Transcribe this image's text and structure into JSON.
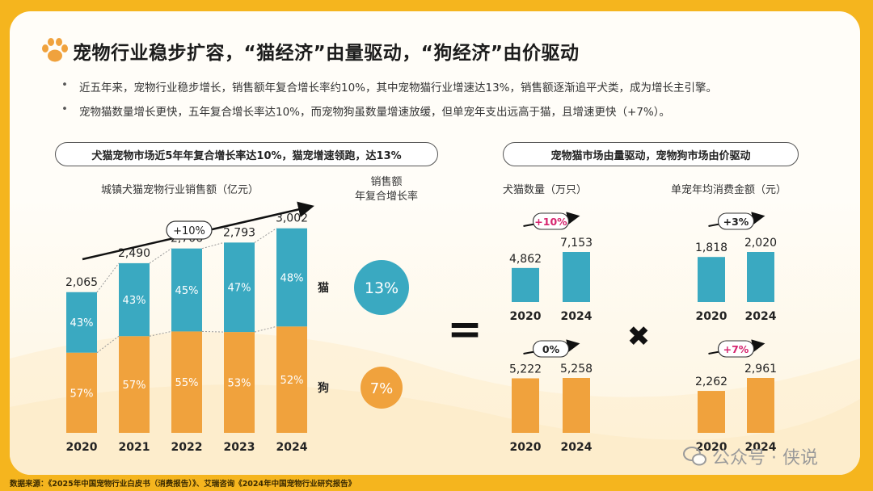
{
  "title": "宠物行业稳步扩容，“猫经济”由量驱动，“狗经济”由价驱动",
  "bullets": [
    "近五年来，宠物行业稳步增长，销售额年复合增长率约10%，其中宠物猫行业增速达13%，销售额逐渐追平犬类，成为增长主引擎。",
    "宠物猫数量增长更快，五年复合增长率达10%，而宠物狗虽数量增速放缓，但单宠年支出远高于猫，且增速更快（+7%）。"
  ],
  "left_pill": "犬猫宠物市场近5年年复合增长率达10%，猫宠增速领跑，达13%",
  "right_pill": "宠物猫市场由量驱动，宠物狗市场由价驱动",
  "left_chart_title": "城镇犬猫宠物行业销售额（亿元）",
  "cagr_header_line1": "销售额",
  "cagr_header_line2": "年复合增长率",
  "cat_label": "猫",
  "dog_label": "狗",
  "equals_sign": "=",
  "times_sign": "✖",
  "count_title": "犬猫数量（万只）",
  "spend_title": "单宠年均消费金额（元）",
  "source": "数据来源：《2025年中国宠物行业白皮书（消费报告）》、艾瑞咨询《2024年中国宠物行业研究报告》",
  "watermark": "公众号 · 侠说",
  "colors": {
    "cat": "#3aa9c1",
    "dog": "#f0a23d",
    "accent": "#f5b51e",
    "pink": "#d6246e"
  },
  "chart_data": [
    {
      "type": "bar",
      "stacked": true,
      "categories": [
        "2020",
        "2021",
        "2022",
        "2023",
        "2024"
      ],
      "totals": [
        2065,
        2490,
        2706,
        2793,
        3002
      ],
      "total_labels": [
        "2,065",
        "2,490",
        "2,706",
        "2,793",
        "3,002"
      ],
      "series": [
        {
          "name": "狗",
          "share_pct": [
            57,
            57,
            55,
            53,
            52
          ],
          "color": "#f0a23d"
        },
        {
          "name": "猫",
          "share_pct": [
            43,
            43,
            45,
            47,
            48
          ],
          "color": "#3aa9c1"
        }
      ],
      "growth_label": "+10%",
      "title": "城镇犬猫宠物行业销售额（亿元）"
    },
    {
      "type": "bubble",
      "items": [
        {
          "name": "猫",
          "value_label": "13%",
          "value": 13,
          "color": "#3aa9c1"
        },
        {
          "name": "狗",
          "value_label": "7%",
          "value": 7,
          "color": "#f0a23d"
        }
      ]
    },
    {
      "type": "bar",
      "title": "犬猫数量（万只）",
      "series_name": "猫",
      "categories": [
        "2020",
        "2024"
      ],
      "values": [
        4862,
        7153
      ],
      "value_labels": [
        "4,862",
        "7,153"
      ],
      "growth_label": "+10%",
      "color": "#3aa9c1"
    },
    {
      "type": "bar",
      "title": "单宠年均消费金额（元）",
      "series_name": "猫",
      "categories": [
        "2020",
        "2024"
      ],
      "values": [
        1818,
        2020
      ],
      "value_labels": [
        "1,818",
        "2,020"
      ],
      "growth_label": "+3%",
      "color": "#3aa9c1"
    },
    {
      "type": "bar",
      "series_name": "狗",
      "categories": [
        "2020",
        "2024"
      ],
      "values": [
        5222,
        5258
      ],
      "value_labels": [
        "5,222",
        "5,258"
      ],
      "growth_label": "0%",
      "color": "#f0a23d"
    },
    {
      "type": "bar",
      "series_name": "狗",
      "categories": [
        "2020",
        "2024"
      ],
      "values": [
        2262,
        2961
      ],
      "value_labels": [
        "2,262",
        "2,961"
      ],
      "growth_label": "+7%",
      "color": "#f0a23d"
    }
  ]
}
